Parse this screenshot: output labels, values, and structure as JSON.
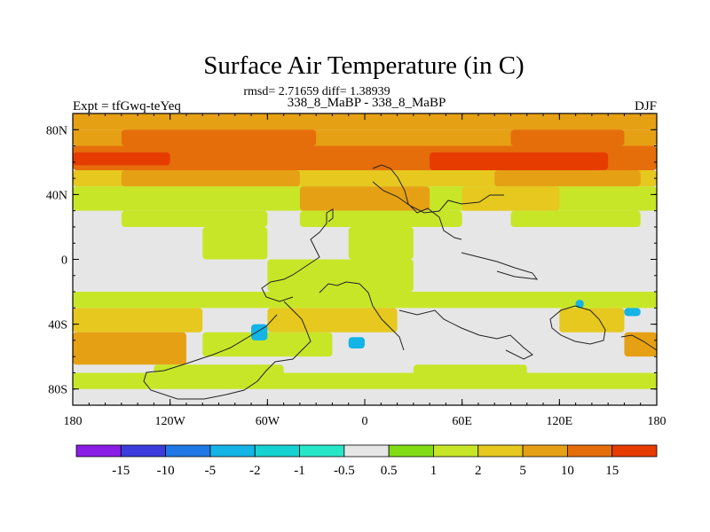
{
  "chart_data": {
    "type": "heatmap",
    "title": "Surface Air Temperature (in C)",
    "subtitle_stats": "rmsd= 2.71659 diff= 1.38939",
    "experiment_label": "Expt = tfGwq-teYeq",
    "comparison_label": "338_8_MaBP - 338_8_MaBP",
    "season_label": "DJF",
    "x_range": [
      -180,
      180
    ],
    "y_range": [
      -90,
      90
    ],
    "x_ticks": [
      {
        "value": -180,
        "label": "180"
      },
      {
        "value": -120,
        "label": "120W"
      },
      {
        "value": -60,
        "label": "60W"
      },
      {
        "value": 0,
        "label": "0"
      },
      {
        "value": 60,
        "label": "60E"
      },
      {
        "value": 120,
        "label": "120E"
      },
      {
        "value": 180,
        "label": "180"
      }
    ],
    "y_ticks": [
      {
        "value": 80,
        "label": "80N"
      },
      {
        "value": 40,
        "label": "40N"
      },
      {
        "value": 0,
        "label": "0"
      },
      {
        "value": -40,
        "label": "40S"
      },
      {
        "value": -80,
        "label": "80S"
      }
    ],
    "colorbar": {
      "levels": [
        "-15",
        "-10",
        "-5",
        "-2",
        "-1",
        "-0.5",
        "0.5",
        "1",
        "2",
        "5",
        "10",
        "15"
      ],
      "colors": [
        "#8a1ee6",
        "#3c3cdc",
        "#1e78e6",
        "#14b4e6",
        "#14d2d2",
        "#28e6c8",
        "#e6e6e6",
        "#82dc14",
        "#c8e628",
        "#e6c81e",
        "#e6a014",
        "#e66e0a",
        "#e63c00"
      ]
    },
    "bands": [
      {
        "lat": [
          80,
          90
        ],
        "lon": [
          -180,
          180
        ],
        "level": "5"
      },
      {
        "lat": [
          70,
          80
        ],
        "lon": [
          -180,
          180
        ],
        "level": "5"
      },
      {
        "lat": [
          70,
          80
        ],
        "lon": [
          -150,
          -30
        ],
        "level": "10"
      },
      {
        "lat": [
          70,
          80
        ],
        "lon": [
          90,
          160
        ],
        "level": "10"
      },
      {
        "lat": [
          55,
          70
        ],
        "lon": [
          -180,
          180
        ],
        "level": "10"
      },
      {
        "lat": [
          58,
          66
        ],
        "lon": [
          -180,
          -120
        ],
        "level": "15"
      },
      {
        "lat": [
          55,
          66
        ],
        "lon": [
          40,
          150
        ],
        "level": "15"
      },
      {
        "lat": [
          45,
          55
        ],
        "lon": [
          -180,
          180
        ],
        "level": "2"
      },
      {
        "lat": [
          45,
          55
        ],
        "lon": [
          -150,
          -40
        ],
        "level": "5"
      },
      {
        "lat": [
          45,
          55
        ],
        "lon": [
          80,
          170
        ],
        "level": "5"
      },
      {
        "lat": [
          30,
          45
        ],
        "lon": [
          -180,
          180
        ],
        "level": "1"
      },
      {
        "lat": [
          30,
          45
        ],
        "lon": [
          -40,
          40
        ],
        "level": "5"
      },
      {
        "lat": [
          30,
          45
        ],
        "lon": [
          60,
          120
        ],
        "level": "2"
      },
      {
        "lat": [
          20,
          30
        ],
        "lon": [
          -150,
          -60
        ],
        "level": "1"
      },
      {
        "lat": [
          20,
          30
        ],
        "lon": [
          -40,
          60
        ],
        "level": "1"
      },
      {
        "lat": [
          20,
          30
        ],
        "lon": [
          90,
          170
        ],
        "level": "1"
      },
      {
        "lat": [
          0,
          20
        ],
        "lon": [
          -100,
          -60
        ],
        "level": "1"
      },
      {
        "lat": [
          0,
          20
        ],
        "lon": [
          -10,
          30
        ],
        "level": "1"
      },
      {
        "lat": [
          -20,
          0
        ],
        "lon": [
          -60,
          30
        ],
        "level": "1"
      },
      {
        "lat": [
          -30,
          -20
        ],
        "lon": [
          -180,
          180
        ],
        "level": "1"
      },
      {
        "lat": [
          -45,
          -30
        ],
        "lon": [
          -180,
          -100
        ],
        "level": "2"
      },
      {
        "lat": [
          -45,
          -30
        ],
        "lon": [
          -60,
          20
        ],
        "level": "2"
      },
      {
        "lat": [
          -45,
          -30
        ],
        "lon": [
          120,
          160
        ],
        "level": "2"
      },
      {
        "lat": [
          -65,
          -45
        ],
        "lon": [
          -180,
          -110
        ],
        "level": "5"
      },
      {
        "lat": [
          -60,
          -45
        ],
        "lon": [
          -100,
          -20
        ],
        "level": "1"
      },
      {
        "lat": [
          -60,
          -45
        ],
        "lon": [
          160,
          180
        ],
        "level": "5"
      },
      {
        "lat": [
          -75,
          -65
        ],
        "lon": [
          -130,
          -50
        ],
        "level": "1"
      },
      {
        "lat": [
          -75,
          -65
        ],
        "lon": [
          30,
          100
        ],
        "level": "1"
      },
      {
        "lat": [
          -80,
          -70
        ],
        "lon": [
          -180,
          180
        ],
        "level": "1"
      },
      {
        "lat": [
          -50,
          -40
        ],
        "lon": [
          -70,
          -60
        ],
        "level": "-2"
      },
      {
        "lat": [
          -55,
          -48
        ],
        "lon": [
          -10,
          0
        ],
        "level": "-2"
      },
      {
        "lat": [
          -30,
          -25
        ],
        "lon": [
          130,
          135
        ],
        "level": "-2"
      },
      {
        "lat": [
          -35,
          -30
        ],
        "lon": [
          160,
          170
        ],
        "level": "-2"
      }
    ]
  }
}
